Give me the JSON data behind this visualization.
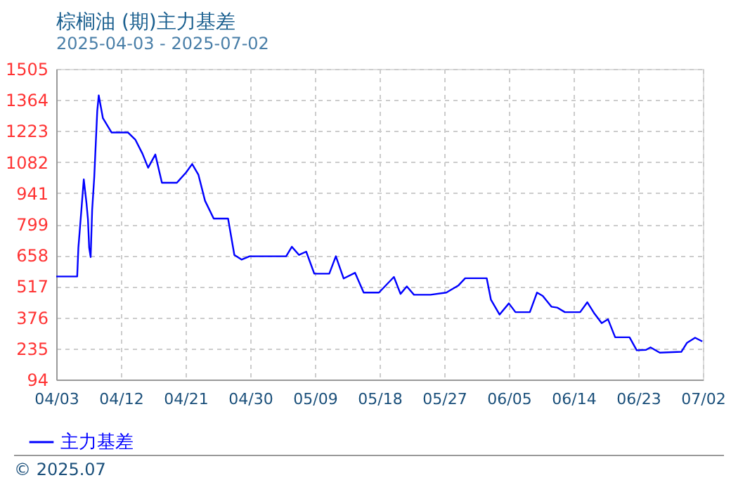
{
  "chart_data": {
    "type": "line",
    "title": "棕榈油 (期)主力基差",
    "subtitle": "2025-04-03 - 2025-07-02",
    "x": [
      "2025-04-03T00:00",
      "2025-04-05T22:00",
      "2025-04-06T02:00",
      "2025-04-06T12:00",
      "2025-04-06T20:00",
      "2025-04-07T05:00",
      "2025-04-07T10:00",
      "2025-04-07T14:00",
      "2025-04-07T19:00",
      "2025-04-08T00:00",
      "2025-04-08T07:00",
      "2025-04-08T12:00",
      "2025-04-08T17:00",
      "2025-04-08T22:00",
      "2025-04-09T02:00",
      "2025-04-09T12:00",
      "2025-04-10T17:00",
      "2025-04-13T00:00",
      "2025-04-14T00:00",
      "2025-04-15T00:00",
      "2025-04-15T19:00",
      "2025-04-16T19:00",
      "2025-04-17T17:00",
      "2025-04-19T19:00",
      "2025-04-21T02:00",
      "2025-04-21T22:00",
      "2025-04-22T19:00",
      "2025-04-23T17:00",
      "2025-04-24T22:00",
      "2025-04-26T22:00",
      "2025-04-27T19:00",
      "2025-04-28T19:00",
      "2025-04-29T22:00",
      "2025-05-05T00:00",
      "2025-05-05T19:00",
      "2025-05-06T19:00",
      "2025-05-07T19:00",
      "2025-05-08T22:00",
      "2025-05-11T00:00",
      "2025-05-11T22:00",
      "2025-05-13T00:00",
      "2025-05-14T14:00",
      "2025-05-15T19:00",
      "2025-05-17T22:00",
      "2025-05-20T00:00",
      "2025-05-20T22:00",
      "2025-05-21T19:00",
      "2025-05-22T19:00",
      "2025-05-25T02:00",
      "2025-05-27T07:00",
      "2025-05-29T00:00",
      "2025-05-29T22:00",
      "2025-06-01T22:00",
      "2025-06-02T12:00",
      "2025-06-03T17:00",
      "2025-06-05T00:00",
      "2025-06-05T22:00",
      "2025-06-07T22:00",
      "2025-06-08T22:00",
      "2025-06-09T17:00",
      "2025-06-10T22:00",
      "2025-06-11T17:00",
      "2025-06-12T19:00",
      "2025-06-14T22:00",
      "2025-06-15T22:00",
      "2025-06-16T22:00",
      "2025-06-17T22:00",
      "2025-06-18T19:00",
      "2025-06-19T19:00",
      "2025-06-21T19:00",
      "2025-06-22T19:00",
      "2025-06-24T02:00",
      "2025-06-24T17:00",
      "2025-06-26T00:00",
      "2025-06-29T00:00",
      "2025-06-29T19:00",
      "2025-06-30T22:00",
      "2025-07-01T22:00"
    ],
    "series": [
      {
        "name": "主力基差",
        "color": "#0000ff",
        "values": [
          562,
          562,
          693,
          864,
          1003,
          896,
          821,
          693,
          650,
          864,
          1013,
          1163,
          1313,
          1385,
          1355,
          1281,
          1216,
          1216,
          1184,
          1120,
          1056,
          1116,
          988,
          988,
          1035,
          1073,
          1024,
          906,
          825,
          825,
          660,
          639,
          654,
          654,
          697,
          660,
          675,
          575,
          575,
          654,
          553,
          579,
          489,
          489,
          560,
          483,
          517,
          479,
          479,
          489,
          522,
          554,
          554,
          457,
          389,
          440,
          400,
          400,
          489,
          474,
          425,
          421,
          400,
          400,
          445,
          393,
          350,
          368,
          286,
          286,
          227,
          229,
          240,
          216,
          220,
          261,
          284,
          267
        ]
      }
    ],
    "xlim": [
      "2025-04-03T00:00",
      "2025-07-02T00:00"
    ],
    "xticks": [
      {
        "value": "2025-04-03T00:00",
        "label": "04/03"
      },
      {
        "value": "2025-04-12T00:00",
        "label": "04/12"
      },
      {
        "value": "2025-04-21T00:00",
        "label": "04/21"
      },
      {
        "value": "2025-04-30T00:00",
        "label": "04/30"
      },
      {
        "value": "2025-05-09T00:00",
        "label": "05/09"
      },
      {
        "value": "2025-05-18T00:00",
        "label": "05/18"
      },
      {
        "value": "2025-05-27T00:00",
        "label": "05/27"
      },
      {
        "value": "2025-06-05T00:00",
        "label": "06/05"
      },
      {
        "value": "2025-06-14T00:00",
        "label": "06/14"
      },
      {
        "value": "2025-06-23T00:00",
        "label": "06/23"
      },
      {
        "value": "2025-07-02T00:00",
        "label": "07/02"
      }
    ],
    "ylim": [
      94,
      1505
    ],
    "yticks": [
      94,
      235,
      376,
      517,
      658,
      799,
      941,
      1082,
      1223,
      1364,
      1505
    ],
    "grid": true,
    "legend": "bottom left",
    "marker": "none",
    "line_style": "solid",
    "annotations": [
      "© 2025.07"
    ]
  }
}
